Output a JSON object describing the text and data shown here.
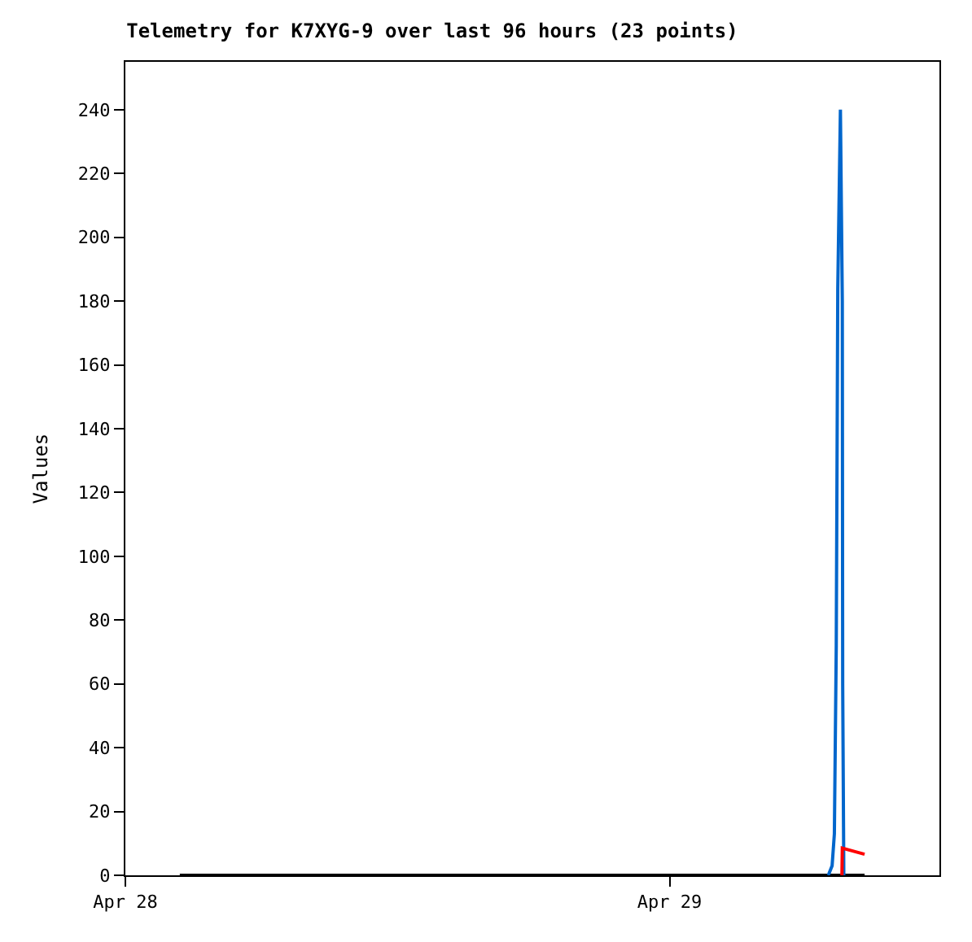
{
  "chart_data": {
    "type": "line",
    "title": "Telemetry for K7XYG-9 over last 96 hours (23 points)",
    "ylabel": "Values",
    "xlim": [
      "--04-28",
      "--04-29T11:54"
    ],
    "xticks": [
      {
        "value": "--04-28",
        "label": "Apr 28"
      },
      {
        "value": "--04-29",
        "label": "Apr 29"
      }
    ],
    "ylim": [
      0,
      255
    ],
    "yticks": [
      0,
      20,
      40,
      60,
      80,
      100,
      120,
      140,
      160,
      180,
      200,
      220,
      240
    ],
    "legend": false,
    "marker": "none",
    "line_style": "solid",
    "series": [
      {
        "color": "#000000",
        "x": [
          "--04-28T02:24",
          "--04-29T08:36"
        ],
        "values": [
          0,
          0
        ]
      },
      {
        "color": "#0066cc",
        "x": [
          "--04-29T07:00",
          "--04-29T07:10",
          "--04-29T07:16",
          "--04-29T07:21",
          "--04-29T07:25",
          "--04-29T07:32",
          "--04-29T07:37",
          "--04-29T07:38",
          "--04-29T07:41"
        ],
        "values": [
          0,
          3,
          13,
          72,
          184,
          240,
          180,
          60,
          0
        ]
      },
      {
        "color": "#ff0000",
        "x": [
          "--04-29T07:36",
          "--04-29T07:37",
          "--04-29T08:36"
        ],
        "values": [
          0,
          8.5,
          6.6
        ]
      }
    ]
  }
}
